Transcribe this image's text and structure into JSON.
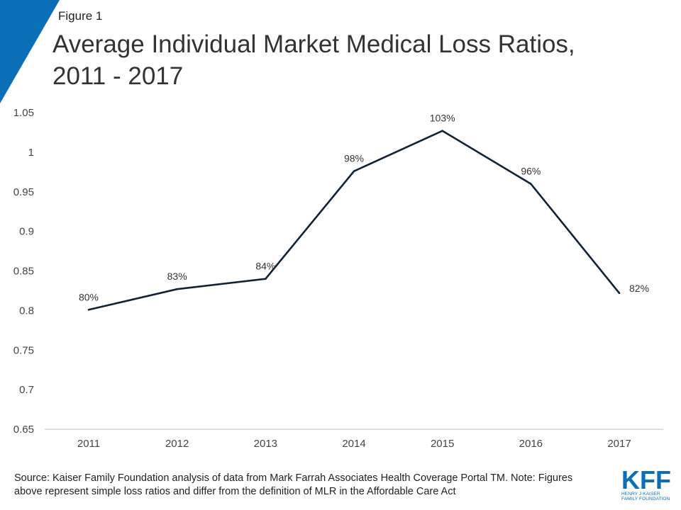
{
  "figure_label": "Figure 1",
  "title": "Average Individual Market Medical Loss Ratios, 2011 - 2017",
  "source": "Source: Kaiser Family Foundation analysis of data from Mark Farrah Associates Health Coverage Portal TM. Note: Figures above represent simple loss ratios and differ from the definition of MLR in the Affordable Care Act",
  "logo": {
    "mark": "KFF",
    "subtitle": "Henry J Kaiser Family Foundation"
  },
  "colors": {
    "accent": "#0b6fb7",
    "line": "#0f2236",
    "axis": "#bfbfbf"
  },
  "chart_data": {
    "type": "line",
    "title": "",
    "xlabel": "",
    "ylabel": "",
    "categories": [
      "2011",
      "2012",
      "2013",
      "2014",
      "2015",
      "2016",
      "2017"
    ],
    "series": [
      {
        "values": [
          0.801,
          0.827,
          0.84,
          0.976,
          1.027,
          0.96,
          0.822
        ],
        "labels": [
          "80%",
          "83%",
          "84%",
          "98%",
          "103%",
          "96%",
          "82%"
        ]
      }
    ],
    "ylim": [
      0.65,
      1.05
    ],
    "yticks": [
      "0.65",
      "0.7",
      "0.75",
      "0.8",
      "0.85",
      "0.9",
      "0.95",
      "1",
      "1.05"
    ],
    "grid": false,
    "legend": "none"
  }
}
